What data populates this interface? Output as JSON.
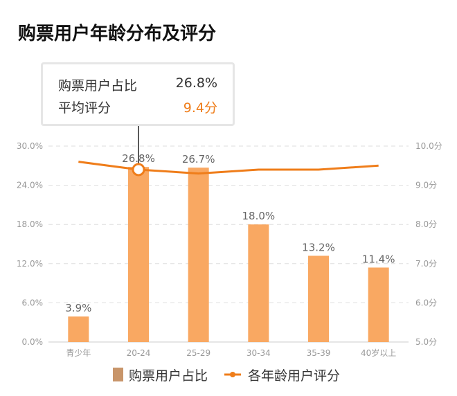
{
  "chart_data": {
    "type": "bar+line",
    "title": "购票用户年龄分布及评分",
    "categories": [
      "青少年",
      "20-24",
      "25-29",
      "30-34",
      "35-39",
      "40岁以上"
    ],
    "series": [
      {
        "name": "购票用户占比",
        "type": "bar",
        "axis": "left",
        "values": [
          3.9,
          26.8,
          26.7,
          18.0,
          13.2,
          11.4
        ],
        "labels": [
          "3.9%",
          "26.8%",
          "26.7%",
          "18.0%",
          "13.2%",
          "11.4%"
        ],
        "color": "#f9a862"
      },
      {
        "name": "各年龄用户评分",
        "type": "line",
        "axis": "right",
        "values": [
          9.6,
          9.4,
          9.3,
          9.4,
          9.4,
          9.5
        ],
        "color": "#ef7d1a"
      }
    ],
    "y_left": {
      "ylim": [
        0,
        30
      ],
      "ticks": [
        "0.0%",
        "6.0%",
        "12.0%",
        "18.0%",
        "24.0%",
        "30.0%"
      ]
    },
    "y_right": {
      "ylim": [
        5,
        10
      ],
      "ticks": [
        "5.0分",
        "6.0分",
        "7.0分",
        "8.0分",
        "9.0分",
        "10.0分"
      ]
    },
    "grid": true,
    "legend": "bottom",
    "tooltip": {
      "category": "20-24",
      "rows": [
        {
          "label": "购票用户占比",
          "value": "26.8%"
        },
        {
          "label": "平均评分",
          "value": "9.4分"
        }
      ]
    }
  }
}
